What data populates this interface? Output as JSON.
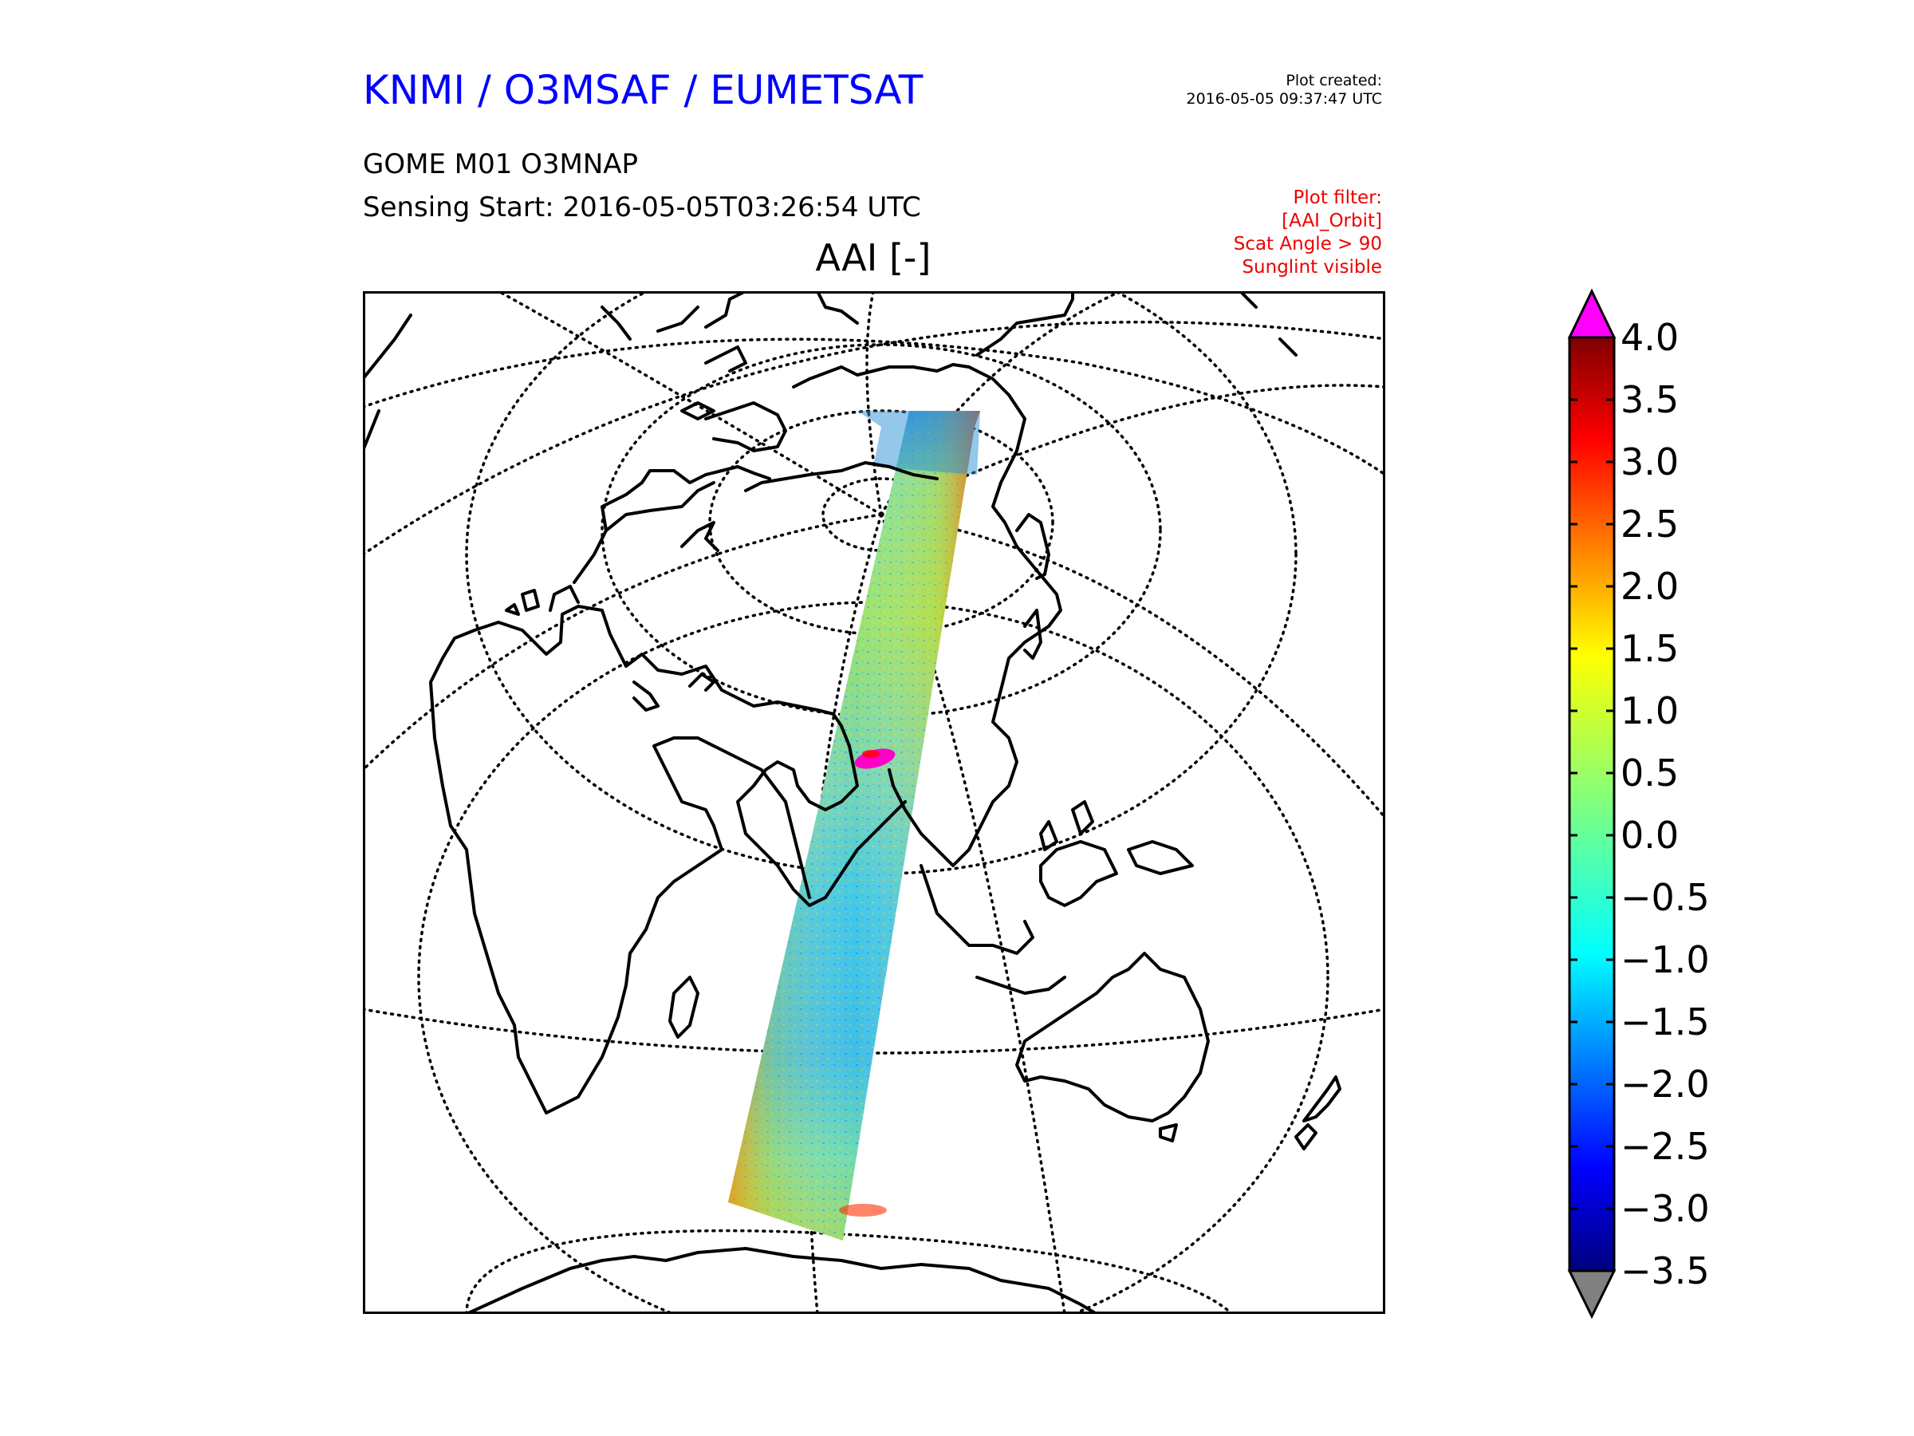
{
  "header": {
    "organization": "KNMI / O3MSAF / EUMETSAT",
    "created_label": "Plot created:",
    "created_time": "2016-05-05 09:37:47 UTC",
    "product": "GOME M01 O3MNAP",
    "sensing_start": "Sensing Start: 2016-05-05T03:26:54 UTC",
    "filter_lines": [
      "Plot filter:",
      "[AAI_Orbit]",
      "Scat Angle > 90",
      "Sunglint visible"
    ],
    "filter_color": "#ee0000",
    "title_color": "#0000ff"
  },
  "map": {
    "title": "AAI [-]",
    "projection": "orthographic",
    "graticule": "dotted",
    "coastlines": true,
    "swath": "single orbit track, northern Siberia to Southern Ocean",
    "high_value_spot": "magenta patch over Central Asia"
  },
  "colorbar": {
    "ticks": [
      "4.0",
      "3.5",
      "3.0",
      "2.5",
      "2.0",
      "1.5",
      "1.0",
      "0.5",
      "0.0",
      "−0.5",
      "−1.0",
      "−1.5",
      "−2.0",
      "−2.5",
      "−3.0",
      "−3.5"
    ],
    "min": -3.5,
    "max": 4.0,
    "colormap": "jet",
    "over_color": "#ff00ff",
    "under_color": "#808080"
  }
}
